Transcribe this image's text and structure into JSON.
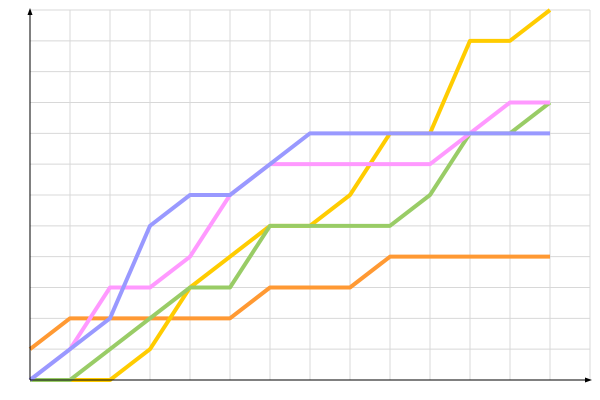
{
  "chart_data": {
    "type": "line",
    "title": "",
    "xlabel": "",
    "ylabel": "",
    "x": [
      0,
      1,
      2,
      3,
      4,
      5,
      6,
      7,
      8,
      9,
      10,
      11,
      12,
      13
    ],
    "xlim": [
      0,
      14
    ],
    "ylim": [
      0,
      12
    ],
    "grid": true,
    "legend": "none",
    "series": [
      {
        "color": "#ff9933",
        "values": [
          1,
          2,
          2,
          2,
          2,
          2,
          3,
          3,
          3,
          4,
          4,
          4,
          4,
          4
        ]
      },
      {
        "color": "#ffcc00",
        "values": [
          0,
          0,
          0,
          1,
          3,
          4,
          5,
          5,
          6,
          8,
          8,
          11,
          11,
          12
        ]
      },
      {
        "color": "#99cc66",
        "values": [
          0,
          0,
          1,
          2,
          3,
          3,
          5,
          5,
          5,
          5,
          6,
          8,
          8,
          9
        ]
      },
      {
        "color": "#ff99ff",
        "values": [
          0,
          1,
          3,
          3,
          4,
          6,
          7,
          7,
          7,
          7,
          7,
          8,
          9,
          9
        ]
      },
      {
        "color": "#9999ff",
        "values": [
          0,
          1,
          2,
          5,
          6,
          6,
          7,
          8,
          8,
          8,
          8,
          8,
          8,
          8
        ]
      }
    ]
  }
}
